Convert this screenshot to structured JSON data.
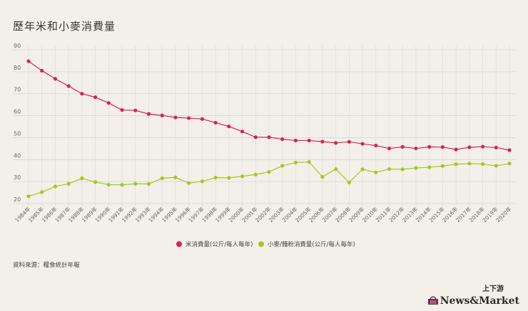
{
  "title": "歷年米和小麥消費量",
  "source": "資料來源：糧食統計年報",
  "brand": {
    "cn": "上下游",
    "en": "News&Market"
  },
  "colors": {
    "rice": "#d9234e",
    "wheat": "#a3c820",
    "grid": "#cfcfcf",
    "background": "#f2f0e9"
  },
  "chart_data": {
    "type": "line",
    "title": "歷年米和小麥消費量",
    "xlabel": "",
    "ylabel": "",
    "ylim": [
      20,
      90
    ],
    "yticks": [
      20,
      30,
      40,
      50,
      60,
      70,
      80,
      90
    ],
    "grid": true,
    "legend_position": "bottom",
    "x": [
      "1984年",
      "1985年",
      "1986年",
      "1987年",
      "1988年",
      "1989年",
      "1990年",
      "1991年",
      "1992年",
      "1993年",
      "1994年",
      "1995年",
      "1996年",
      "1997年",
      "1998年",
      "1999年",
      "2000年",
      "2001年",
      "2002年",
      "2003年",
      "2004年",
      "2005年",
      "2006年",
      "2007年",
      "2008年",
      "2009年",
      "2010年",
      "2011年",
      "2012年",
      "2013年",
      "2014年",
      "2015年",
      "2016年",
      "2017年",
      "2018年",
      "2019年",
      "2020年"
    ],
    "series": [
      {
        "name": "米消費量(公斤/每人每年)",
        "color": "#d9234e",
        "values": [
          84.8,
          80.5,
          76.8,
          73.5,
          70.0,
          68.4,
          65.8,
          62.6,
          62.4,
          60.8,
          60.1,
          59.2,
          58.9,
          58.5,
          56.8,
          55.1,
          52.8,
          50.2,
          50.2,
          49.3,
          48.7,
          48.7,
          48.2,
          47.6,
          48.1,
          47.2,
          46.4,
          45.1,
          45.8,
          45.1,
          45.8,
          45.7,
          44.6,
          45.6,
          45.9,
          45.5,
          44.3
        ]
      },
      {
        "name": "小麥/麵粉消費量(公斤/每人每年)",
        "color": "#a3c820",
        "values": [
          23.3,
          25.2,
          27.8,
          29.0,
          31.5,
          29.8,
          28.6,
          28.5,
          29.0,
          28.9,
          31.5,
          31.9,
          29.3,
          30.1,
          31.8,
          31.7,
          32.4,
          33.2,
          34.4,
          37.2,
          38.7,
          38.9,
          32.2,
          35.7,
          29.6,
          35.6,
          34.2,
          35.7,
          35.6,
          36.2,
          36.5,
          37.1,
          37.9,
          38.2,
          38.0,
          37.2,
          38.2
        ]
      }
    ]
  }
}
